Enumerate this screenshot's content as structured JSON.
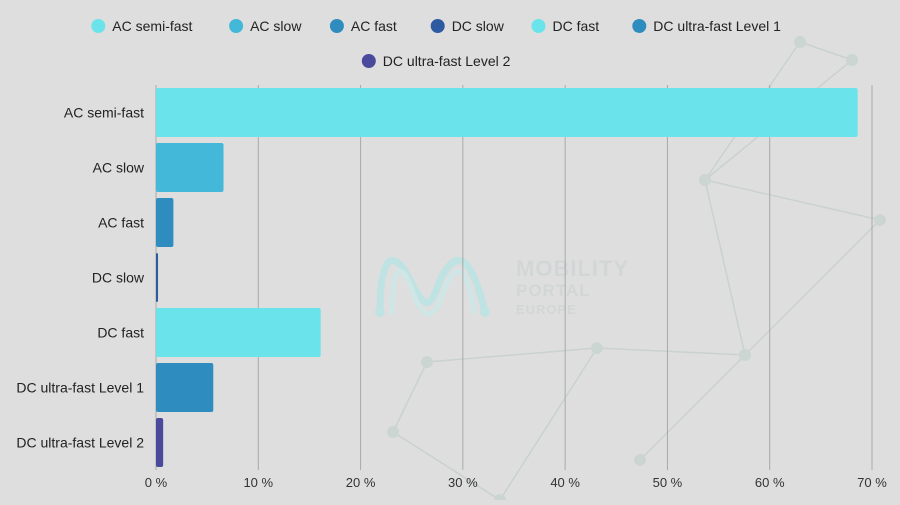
{
  "chart_data": {
    "type": "bar",
    "orientation": "horizontal",
    "categories": [
      "AC semi-fast",
      "AC slow",
      "AC fast",
      "DC slow",
      "DC fast",
      "DC ultra-fast Level 1",
      "DC ultra-fast Level 2"
    ],
    "values": [
      68.6,
      6.6,
      1.7,
      0.2,
      16.1,
      5.6,
      0.7
    ],
    "colors": [
      "#6ae4ea",
      "#43b8d8",
      "#2e8dbe",
      "#2d5aa0",
      "#6ae4ea",
      "#2e8dbe",
      "#4a4a9c"
    ],
    "legend": {
      "position": "top",
      "items": [
        {
          "label": "AC semi-fast",
          "color": "#6ae4ea"
        },
        {
          "label": "AC slow",
          "color": "#43b8d8"
        },
        {
          "label": "AC fast",
          "color": "#2e8dbe"
        },
        {
          "label": "DC slow",
          "color": "#2d5aa0"
        },
        {
          "label": "DC fast",
          "color": "#6ae4ea"
        },
        {
          "label": "DC ultra-fast Level 1",
          "color": "#2e8dbe"
        },
        {
          "label": "DC ultra-fast Level 2",
          "color": "#4a4a9c"
        }
      ]
    },
    "xlim": [
      0,
      70
    ],
    "xticks": [
      0,
      10,
      20,
      30,
      40,
      50,
      60,
      70
    ],
    "xtick_labels": [
      "0 %",
      "10 %",
      "20 %",
      "30 %",
      "40 %",
      "50 %",
      "60 %",
      "70 %"
    ],
    "grid": true,
    "title": "",
    "xlabel": "",
    "ylabel": ""
  },
  "watermark": {
    "lines": [
      "MOBILITY",
      "PORTAL",
      "EUROPE"
    ]
  }
}
